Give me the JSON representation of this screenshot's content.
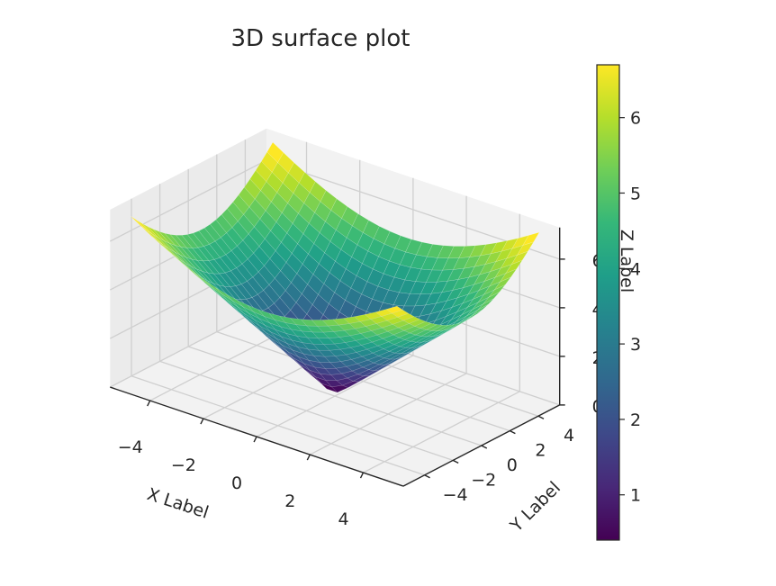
{
  "chart_data": {
    "type": "surface3d",
    "title": "3D surface plot",
    "xlabel": "X Label",
    "ylabel": "Y Label",
    "zlabel": "Z Label",
    "function": "z = sqrt(x^2 + y^2)",
    "x_range": [
      -5,
      5
    ],
    "y_range": [
      -5,
      5
    ],
    "grid_steps": 25,
    "xlim": [
      -5.5,
      5.5
    ],
    "ylim": [
      -5.5,
      5.5
    ],
    "zlim": [
      0,
      7.3
    ],
    "xticks": [
      -4,
      -2,
      0,
      2,
      4
    ],
    "yticks": [
      -4,
      -2,
      0,
      2,
      4
    ],
    "zticks": [
      0,
      2,
      4,
      6
    ],
    "colormap": "viridis",
    "colorbar": {
      "min": 0.4,
      "max": 6.7,
      "ticks": [
        1,
        2,
        3,
        4,
        5,
        6
      ]
    },
    "grid": true,
    "view": {
      "elev": 30,
      "azim": -60
    }
  },
  "colors": {
    "pane": "#f2f2f2",
    "pane_side": "#ebebeb",
    "grid": "#cfcfcf",
    "axis": "#262626",
    "viridis": [
      "#440154",
      "#482878",
      "#3e4989",
      "#31688e",
      "#26828e",
      "#1f9e89",
      "#35b779",
      "#6ece58",
      "#b5de2b",
      "#fde725"
    ]
  }
}
